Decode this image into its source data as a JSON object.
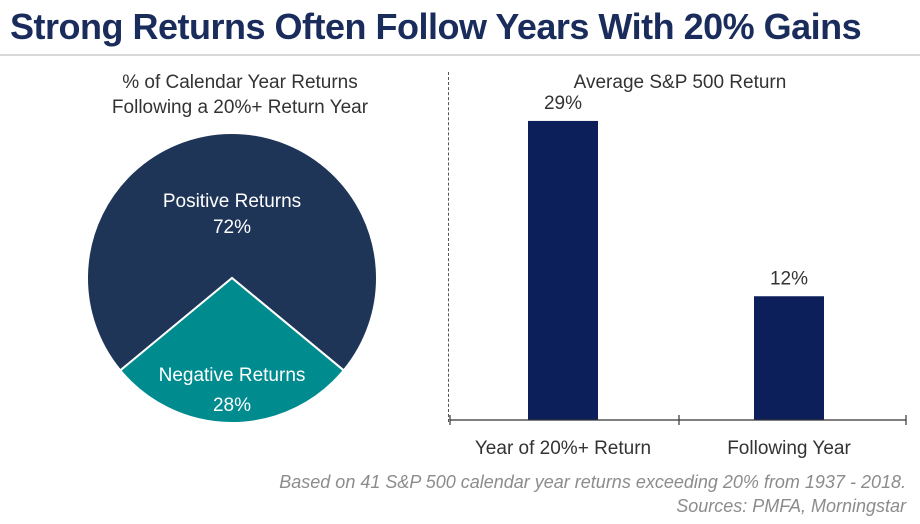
{
  "title": "Strong Returns Often Follow Years With 20% Gains",
  "colors": {
    "title": "#1a2c5b",
    "positive": "#1f3558",
    "negative": "#008b8f",
    "bar": "#0d1f5a",
    "text": "#333333",
    "footnote": "#8c8c8c"
  },
  "chart_data": [
    {
      "type": "pie",
      "title_line1": "% of Calendar Year Returns",
      "title_line2": "Following a 20%+ Return Year",
      "slices": [
        {
          "label": "Positive Returns",
          "value": 72,
          "value_label": "72%",
          "color": "#1f3558"
        },
        {
          "label": "Negative Returns",
          "value": 28,
          "value_label": "28%",
          "color": "#008b8f"
        }
      ]
    },
    {
      "type": "bar",
      "title": "Average S&P 500 Return",
      "categories": [
        "Year of 20%+ Return",
        "Following Year"
      ],
      "values": [
        29,
        12
      ],
      "value_labels": [
        "29%",
        "12%"
      ],
      "ylim": [
        0,
        32
      ]
    }
  ],
  "footnote": {
    "line1": "Based on 41 S&P 500 calendar year returns exceeding 20% from 1937 - 2018.",
    "line2": "Sources: PMFA, Morningstar"
  }
}
